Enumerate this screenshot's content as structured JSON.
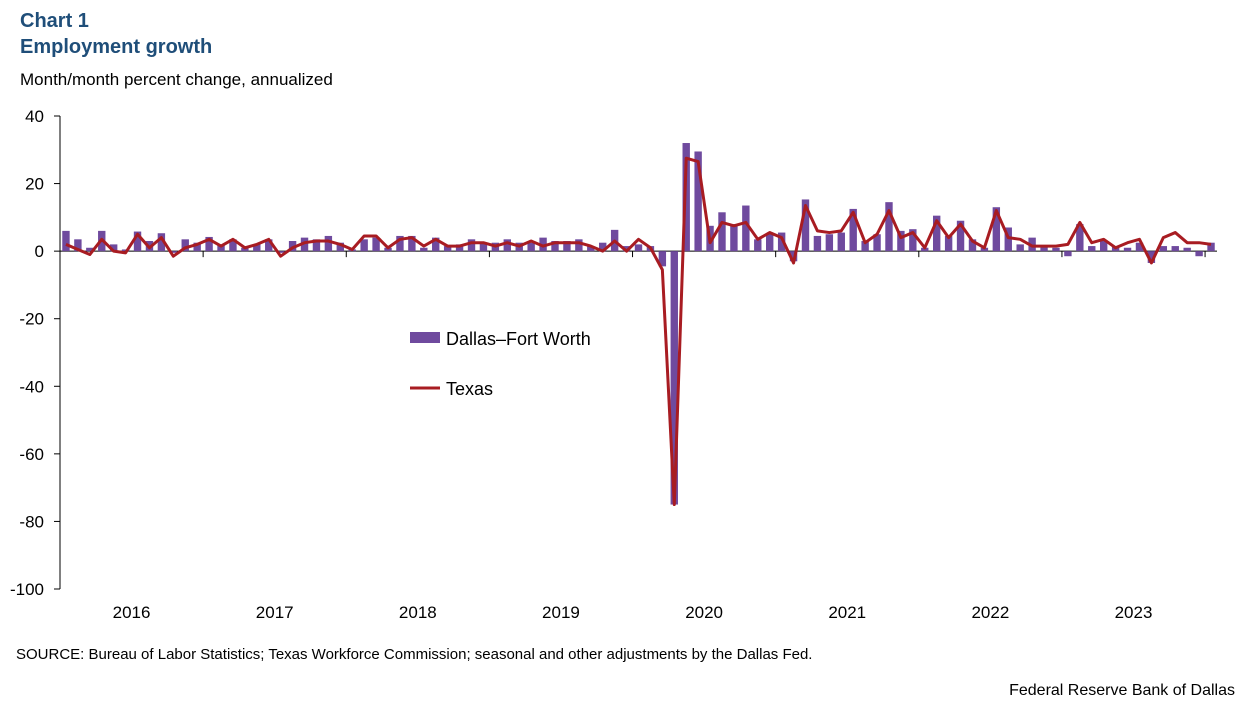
{
  "header": {
    "chart_label": "Chart 1",
    "title": "Employment growth",
    "subtitle": "Month/month percent change, annualized"
  },
  "footer": {
    "source": "SOURCE: Bureau of Labor Statistics; Texas Workforce Commission; seasonal and other adjustments by the Dallas Fed.",
    "credit": "Federal Reserve Bank of Dallas"
  },
  "colors": {
    "bar": "#6f4a9e",
    "line": "#a81c22",
    "axis": "#000000",
    "title": "#1f4e79"
  },
  "chart_data": {
    "type": "bar+line",
    "title": "Employment growth",
    "ylabel": "Month/month percent change, annualized",
    "ylim": [
      -100,
      40
    ],
    "yticks": [
      40,
      20,
      0,
      -20,
      -40,
      -60,
      -80,
      -100
    ],
    "year_labels": [
      "2016",
      "2017",
      "2018",
      "2019",
      "2020",
      "2021",
      "2022",
      "2023"
    ],
    "months_start": "2016-01",
    "legend_position": "center-left",
    "series": [
      {
        "name": "Dallas–Fort Worth",
        "kind": "bar",
        "values": [
          6,
          3.5,
          1,
          6,
          2,
          0.5,
          5.8,
          3,
          5.3,
          -0.5,
          3.5,
          2.5,
          4.2,
          2,
          3.5,
          1,
          2,
          3.5,
          -0.5,
          3,
          4,
          3.5,
          4.5,
          2.5,
          0.5,
          3.5,
          4,
          1,
          4.5,
          4.5,
          1,
          4,
          1.5,
          2,
          3.5,
          2.5,
          2.5,
          3.5,
          2.5,
          2.5,
          4,
          3,
          3,
          3.5,
          1.5,
          2.5,
          6.3,
          1.5,
          2,
          1.5,
          -4.5,
          -75,
          32,
          29.5,
          7.5,
          11.5,
          8,
          13.5,
          3.5,
          5,
          5.5,
          -3,
          15.3,
          4.5,
          5,
          5.5,
          12.5,
          3,
          5,
          14.5,
          6,
          6.5,
          1,
          10.5,
          4.5,
          9,
          3.5,
          1,
          13,
          7,
          2,
          4,
          1.5,
          1,
          -1.5,
          8,
          1.5,
          3,
          1.5,
          1,
          2.5,
          -3.5,
          1.5,
          1.5,
          1,
          -1.5,
          2.5
        ]
      },
      {
        "name": "Texas",
        "kind": "line",
        "values": [
          2,
          0.5,
          -1,
          3.5,
          0,
          -0.5,
          5,
          1,
          4,
          -1.5,
          1,
          2,
          3.5,
          1.5,
          3.5,
          1,
          2,
          3.5,
          -1.5,
          1,
          2.5,
          3,
          3,
          2,
          0.5,
          4.5,
          4.5,
          1,
          3.5,
          4,
          1.5,
          3.5,
          1.5,
          1.5,
          2.5,
          2.5,
          1.5,
          2.5,
          1.5,
          3,
          1.5,
          2.5,
          2.5,
          2.5,
          1.5,
          0,
          3,
          0,
          3.5,
          1,
          -5.5,
          -75,
          27.5,
          26.5,
          2.5,
          8.5,
          7.5,
          8.5,
          3.5,
          5.5,
          4,
          -3.5,
          13.5,
          6,
          5.5,
          6,
          11.5,
          2.5,
          5,
          12,
          4,
          5.5,
          1,
          9,
          4,
          8,
          3,
          1,
          12,
          4,
          3.5,
          1.5,
          1.5,
          1.5,
          2,
          8.5,
          2.5,
          3.5,
          1,
          2.5,
          3.5,
          -3.5,
          4,
          5.5,
          2.5,
          2.5,
          2
        ]
      }
    ]
  }
}
